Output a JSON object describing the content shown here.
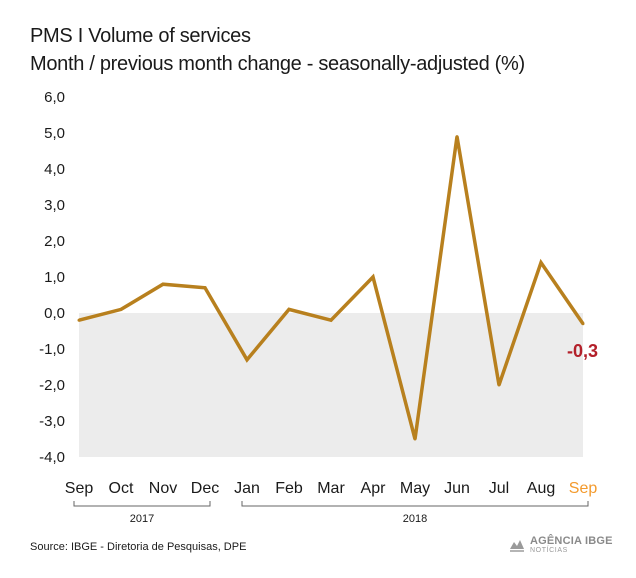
{
  "header": {
    "title": "PMS  I Volume of services",
    "subtitle": "Month / previous month change - seasonally-adjusted (%)"
  },
  "footer": {
    "source": "Source: IBGE - Diretoria de Pesquisas, DPE",
    "logo_main": "AGÊNCIA IBGE",
    "logo_sub": "NOTÍCIAS"
  },
  "colors": {
    "line": "#b8801e",
    "highlight_tick": "#f39a2d",
    "last_label": "#b3202a",
    "negative_band": "#ececec",
    "text": "#1a1a1a"
  },
  "chart_data": {
    "type": "line",
    "title": "PMS  I Volume of services",
    "subtitle": "Month / previous month change - seasonally-adjusted (%)",
    "xlabel": "",
    "ylabel": "",
    "categories": [
      "Sep",
      "Oct",
      "Nov",
      "Dec",
      "Jan",
      "Feb",
      "Mar",
      "Apr",
      "May",
      "Jun",
      "Jul",
      "Aug",
      "Sep"
    ],
    "series": [
      {
        "values": [
          -0.2,
          0.1,
          0.8,
          0.7,
          -1.3,
          0.1,
          -0.2,
          1.0,
          -3.5,
          4.9,
          -2.0,
          1.4,
          -0.3
        ]
      }
    ],
    "yticks": [
      "6,0",
      "5,0",
      "4,0",
      "3,0",
      "2,0",
      "1,0",
      "0,0",
      "-1,0",
      "-2,0",
      "-3,0",
      "-4,0"
    ],
    "ylim": [
      -4,
      6
    ],
    "shaded_region": "below 0",
    "last_value_label": "-0,3",
    "highlighted_category_index": 12,
    "year_groups": [
      {
        "label": "2017",
        "start_index": 0,
        "end_index": 3
      },
      {
        "label": "2018",
        "start_index": 4,
        "end_index": 12
      }
    ]
  }
}
